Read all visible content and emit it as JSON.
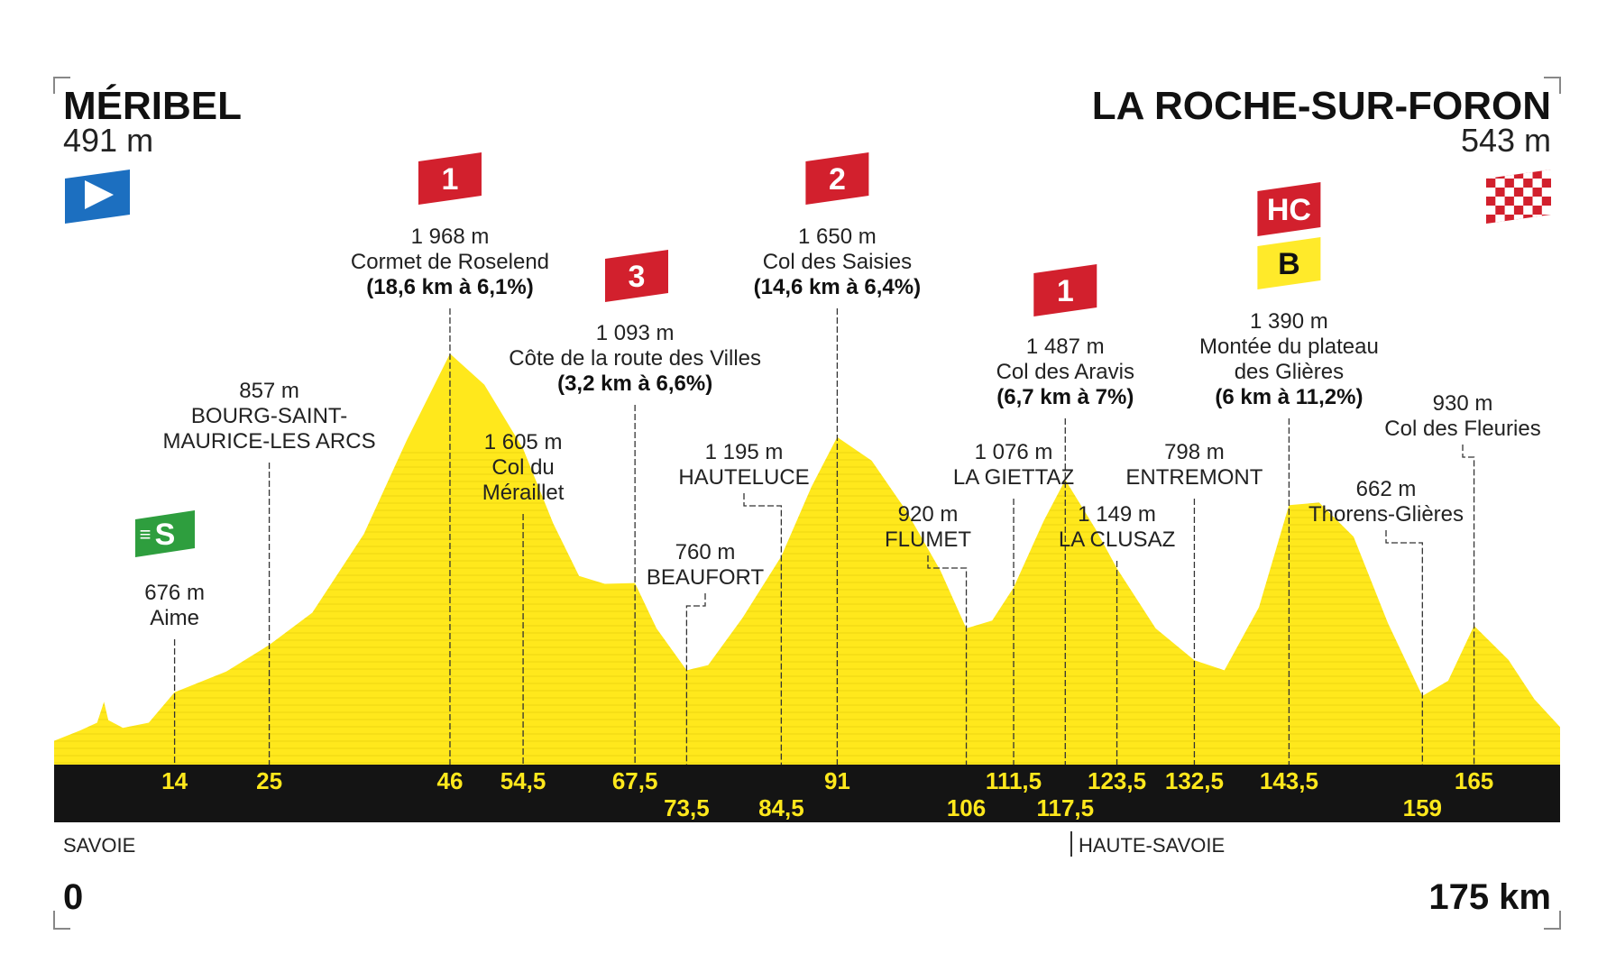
{
  "start": {
    "name": "MÉRIBEL",
    "alt": "491 m"
  },
  "finish": {
    "name": "LA ROCHE-SUR-FORON",
    "alt": "543 m"
  },
  "regions": {
    "left": "SAVOIE",
    "right": "HAUTE-SAVOIE"
  },
  "distance": {
    "start": "0",
    "end": "175 km"
  },
  "colors": {
    "profile": "#FFE81C",
    "band": "#141414",
    "km_label": "#FFE81C",
    "climb_badge": "#D2202D",
    "sprint": "#2E9E3E",
    "bonus": "#FFEA2A",
    "start_flag": "#1C6FC0",
    "finish_flag": "#D2202D"
  },
  "chart_data": {
    "type": "area",
    "xlim": [
      0,
      175
    ],
    "ylim": [
      400,
      2000
    ],
    "profile": [
      [
        0,
        491
      ],
      [
        3,
        530
      ],
      [
        5,
        560
      ],
      [
        5.8,
        640
      ],
      [
        6.3,
        570
      ],
      [
        8,
        540
      ],
      [
        11,
        560
      ],
      [
        14,
        676
      ],
      [
        20,
        755
      ],
      [
        25,
        857
      ],
      [
        30,
        980
      ],
      [
        36,
        1280
      ],
      [
        41,
        1640
      ],
      [
        46,
        1968
      ],
      [
        50,
        1850
      ],
      [
        54.5,
        1605
      ],
      [
        58,
        1320
      ],
      [
        61,
        1120
      ],
      [
        64,
        1090
      ],
      [
        67.5,
        1093
      ],
      [
        70,
        920
      ],
      [
        73.5,
        760
      ],
      [
        76,
        780
      ],
      [
        80,
        960
      ],
      [
        84.5,
        1195
      ],
      [
        88,
        1460
      ],
      [
        91,
        1650
      ],
      [
        95,
        1560
      ],
      [
        99,
        1370
      ],
      [
        103,
        1140
      ],
      [
        106,
        920
      ],
      [
        109,
        950
      ],
      [
        111.5,
        1076
      ],
      [
        115,
        1330
      ],
      [
        117.5,
        1487
      ],
      [
        121,
        1300
      ],
      [
        123.5,
        1149
      ],
      [
        128,
        920
      ],
      [
        132.5,
        798
      ],
      [
        136,
        760
      ],
      [
        140,
        1000
      ],
      [
        143.5,
        1390
      ],
      [
        147,
        1400
      ],
      [
        151,
        1270
      ],
      [
        155,
        940
      ],
      [
        159,
        662
      ],
      [
        162,
        720
      ],
      [
        165,
        930
      ],
      [
        169,
        800
      ],
      [
        172,
        650
      ],
      [
        175,
        543
      ]
    ],
    "km_markers": [
      {
        "km": 14,
        "label": "14",
        "row": 1
      },
      {
        "km": 25,
        "label": "25",
        "row": 1
      },
      {
        "km": 46,
        "label": "46",
        "row": 1
      },
      {
        "km": 54.5,
        "label": "54,5",
        "row": 1
      },
      {
        "km": 67.5,
        "label": "67,5",
        "row": 1
      },
      {
        "km": 73.5,
        "label": "73,5",
        "row": 2
      },
      {
        "km": 84.5,
        "label": "84,5",
        "row": 2
      },
      {
        "km": 91,
        "label": "91",
        "row": 1
      },
      {
        "km": 106,
        "label": "106",
        "row": 2
      },
      {
        "km": 111.5,
        "label": "111,5",
        "row": 1
      },
      {
        "km": 117.5,
        "label": "117,5",
        "row": 2
      },
      {
        "km": 123.5,
        "label": "123,5",
        "row": 1
      },
      {
        "km": 132.5,
        "label": "132,5",
        "row": 1
      },
      {
        "km": 143.5,
        "label": "143,5",
        "row": 1
      },
      {
        "km": 159,
        "label": "159",
        "row": 2
      },
      {
        "km": 165,
        "label": "165",
        "row": 1
      }
    ],
    "points": [
      {
        "km": 14,
        "alt": "676 m",
        "name": [
          "Aime"
        ],
        "detail": "",
        "badge": "S"
      },
      {
        "km": 25,
        "alt": "857 m",
        "name": [
          "BOURG-SAINT-",
          "MAURICE-LES ARCS"
        ],
        "detail": ""
      },
      {
        "km": 46,
        "alt": "1 968 m",
        "name": [
          "Cormet de Roselend"
        ],
        "detail": "(18,6 km à 6,1%)",
        "badge": "1"
      },
      {
        "km": 54.5,
        "alt": "1 605 m",
        "name": [
          "Col du",
          "Méraillet"
        ],
        "detail": ""
      },
      {
        "km": 67.5,
        "alt": "1 093 m",
        "name": [
          "Côte de la route des Villes"
        ],
        "detail": "(3,2 km à 6,6%)",
        "badge": "3"
      },
      {
        "km": 73.5,
        "alt": "760 m",
        "name": [
          "BEAUFORT"
        ],
        "detail": ""
      },
      {
        "km": 84.5,
        "alt": "1 195 m",
        "name": [
          "HAUTELUCE"
        ],
        "detail": ""
      },
      {
        "km": 91,
        "alt": "1 650 m",
        "name": [
          "Col des Saisies"
        ],
        "detail": "(14,6 km à 6,4%)",
        "badge": "2"
      },
      {
        "km": 106,
        "alt": "920 m",
        "name": [
          "FLUMET"
        ],
        "detail": ""
      },
      {
        "km": 111.5,
        "alt": "1 076 m",
        "name": [
          "LA GIETTAZ"
        ],
        "detail": ""
      },
      {
        "km": 117.5,
        "alt": "1 487 m",
        "name": [
          "Col des Aravis"
        ],
        "detail": "(6,7 km à 7%)",
        "badge": "1"
      },
      {
        "km": 123.5,
        "alt": "1 149 m",
        "name": [
          "LA CLUSAZ"
        ],
        "detail": ""
      },
      {
        "km": 132.5,
        "alt": "798 m",
        "name": [
          "ENTREMONT"
        ],
        "detail": ""
      },
      {
        "km": 143.5,
        "alt": "1 390 m",
        "name": [
          "Montée du plateau",
          "des Glières"
        ],
        "detail": "(6 km à 11,2%)",
        "badge": "HC",
        "bonus": "B"
      },
      {
        "km": 159,
        "alt": "662 m",
        "name": [
          "Thorens-Glières"
        ],
        "detail": ""
      },
      {
        "km": 165,
        "alt": "930 m",
        "name": [
          "Col des Fleuries"
        ],
        "detail": ""
      }
    ]
  }
}
